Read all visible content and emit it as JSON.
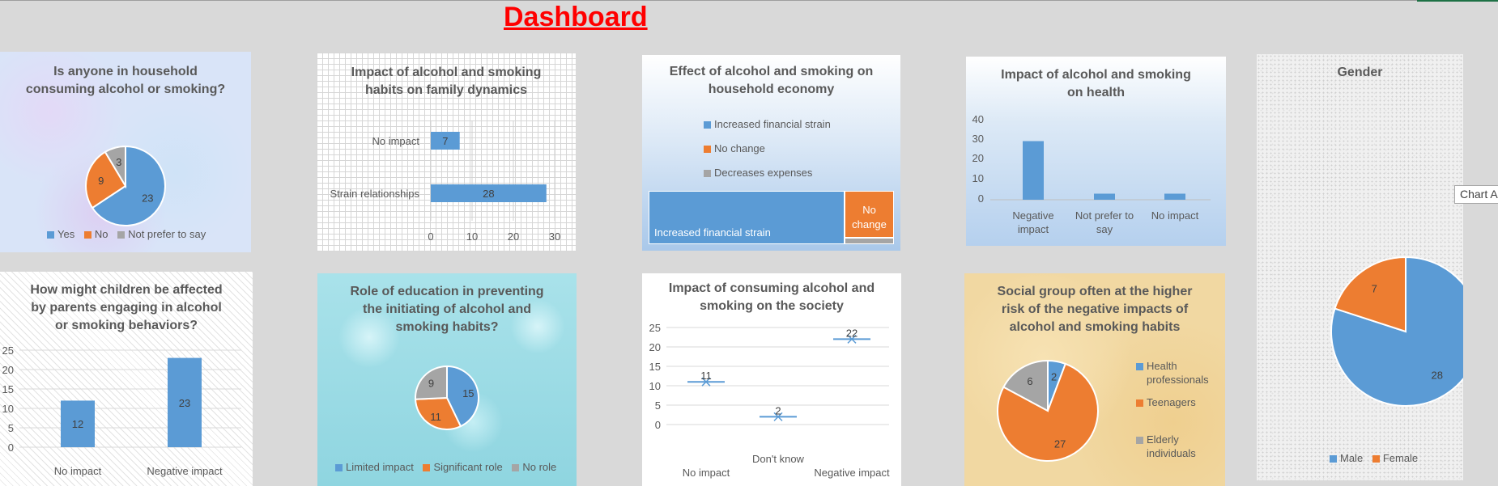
{
  "dashboard_title": "Dashboard",
  "colors": {
    "blue": "#5b9bd5",
    "orange": "#ed7d31",
    "gray": "#a5a5a5",
    "title_red": "#ff0000"
  },
  "tooltip": "Chart A",
  "charts": {
    "household": {
      "title_l1": "Is anyone in household",
      "title_l2": "consuming alcohol or smoking?",
      "legend": [
        "Yes",
        "No",
        "Not prefer to say"
      ],
      "labels": [
        "23",
        "9",
        "3"
      ]
    },
    "family": {
      "title_l1": "Impact of alcohol and smoking",
      "title_l2": "habits on family dynamics",
      "categories": [
        "No impact",
        "Strain relationships"
      ],
      "labels": [
        "7",
        "28"
      ],
      "ticks": [
        "0",
        "10",
        "20",
        "30"
      ]
    },
    "economy": {
      "title_l1": "Effect of alcohol and smoking on",
      "title_l2": "household economy",
      "legend": [
        "Increased financial strain",
        "No change",
        "Decreases expenses"
      ],
      "tile_big": "Increased financial strain",
      "tile_nochange_l1": "No",
      "tile_nochange_l2": "change"
    },
    "health": {
      "title_l1": "Impact of alcohol and smoking",
      "title_l2": "on health",
      "ticks": [
        "40",
        "30",
        "20",
        "10",
        "0"
      ],
      "cat1_l1": "Negative",
      "cat1_l2": "impact",
      "cat2_l1": "Not prefer to",
      "cat2_l2": "say",
      "cat3": "No impact"
    },
    "gender": {
      "title": "Gender",
      "legend": [
        "Male",
        "Female"
      ],
      "labels": [
        "28",
        "7"
      ]
    },
    "children": {
      "title_l1": "How might children be affected",
      "title_l2": "by parents engaging in alcohol",
      "title_l3": "or smoking behaviors?",
      "ticks": [
        "25",
        "20",
        "15",
        "10",
        "5",
        "0"
      ],
      "categories": [
        "No impact",
        "Negative impact"
      ],
      "labels": [
        "12",
        "23"
      ]
    },
    "education": {
      "title_l1": "Role of education in preventing",
      "title_l2": "the initiating of alcohol and",
      "title_l3": "smoking habits?",
      "legend": [
        "Limited impact",
        "Significant role",
        "No role"
      ],
      "labels": [
        "15",
        "11",
        "9"
      ]
    },
    "society": {
      "title_l1": "Impact of consuming alcohol and",
      "title_l2": "smoking on the society",
      "ticks": [
        "25",
        "20",
        "15",
        "10",
        "5",
        "0"
      ],
      "categories": [
        "No impact",
        "Don't know",
        "Negative impact"
      ],
      "labels": [
        "11",
        "2",
        "22"
      ]
    },
    "social_group": {
      "title_l1": "Social group often at the higher",
      "title_l2": "risk of the negative impacts of",
      "title_l3": "alcohol and smoking habits",
      "legend_1a": "Health",
      "legend_1b": "professionals",
      "legend_2": "Teenagers",
      "legend_3a": "Elderly",
      "legend_3b": "individuals",
      "labels": [
        "2",
        "27",
        "6"
      ]
    }
  },
  "chart_data": [
    {
      "type": "pie",
      "title": "Is anyone in household consuming alcohol or smoking?",
      "categories": [
        "Yes",
        "No",
        "Not prefer to say"
      ],
      "values": [
        23,
        9,
        3
      ]
    },
    {
      "type": "bar",
      "title": "Impact of alcohol and smoking habits on family dynamics",
      "orientation": "horizontal",
      "categories": [
        "No impact",
        "Strain relationships"
      ],
      "values": [
        7,
        28
      ],
      "xlim": [
        0,
        30
      ]
    },
    {
      "type": "heatmap",
      "title": "Effect of alcohol and smoking on household economy",
      "categories": [
        "Increased financial strain",
        "No change",
        "Decreases expenses"
      ],
      "values": [
        28,
        5,
        1
      ]
    },
    {
      "type": "bar",
      "title": "Impact of alcohol and smoking on health",
      "categories": [
        "Negative impact",
        "Not prefer to say",
        "No impact"
      ],
      "values": [
        29,
        3,
        3
      ],
      "ylim": [
        0,
        40
      ]
    },
    {
      "type": "pie",
      "title": "Gender",
      "categories": [
        "Male",
        "Female"
      ],
      "values": [
        28,
        7
      ]
    },
    {
      "type": "bar",
      "title": "How might children be affected by parents engaging in alcohol or smoking behaviors?",
      "categories": [
        "No impact",
        "Negative impact"
      ],
      "values": [
        12,
        23
      ],
      "ylim": [
        0,
        25
      ]
    },
    {
      "type": "pie",
      "title": "Role of education in preventing the initiating of alcohol and smoking habits?",
      "categories": [
        "Limited impact",
        "Significant role",
        "No role"
      ],
      "values": [
        15,
        11,
        9
      ]
    },
    {
      "type": "scatter",
      "title": "Impact of consuming alcohol and smoking on the society",
      "categories": [
        "No impact",
        "Don't know",
        "Negative impact"
      ],
      "values": [
        11,
        2,
        22
      ],
      "ylim": [
        0,
        25
      ]
    },
    {
      "type": "pie",
      "title": "Social group often at the higher risk of the negative impacts of alcohol and smoking habits",
      "categories": [
        "Health professionals",
        "Teenagers",
        "Elderly individuals"
      ],
      "values": [
        2,
        27,
        6
      ]
    }
  ]
}
